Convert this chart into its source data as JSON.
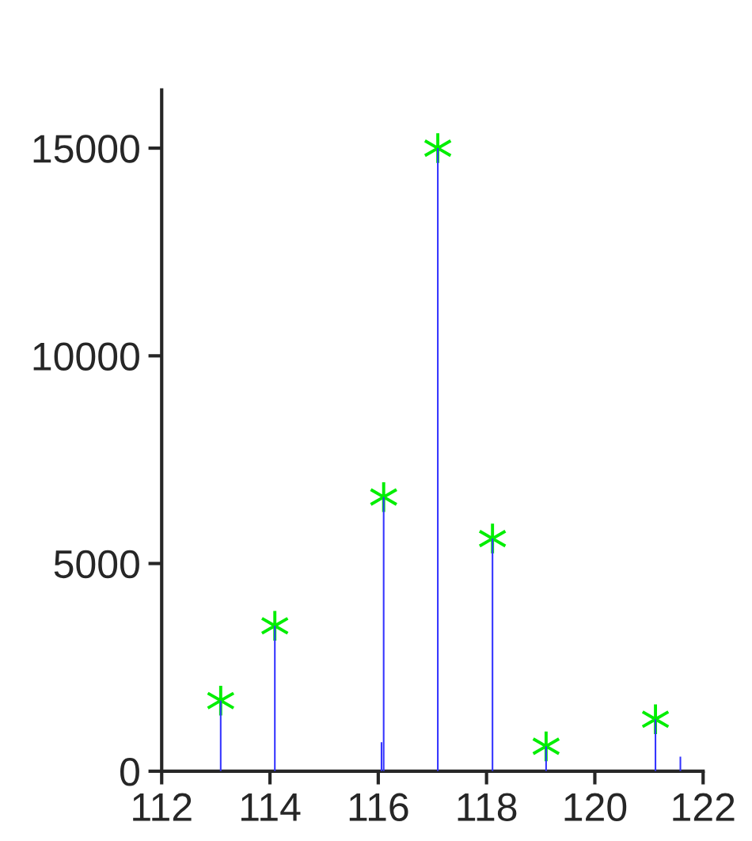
{
  "chart_data": {
    "type": "bar",
    "xlim": [
      112,
      122
    ],
    "xticks": [
      112,
      114,
      116,
      118,
      120,
      122
    ],
    "ylim": [
      0,
      16400
    ],
    "yticks": [
      0,
      5000,
      10000,
      15000
    ],
    "grid": false,
    "series": [
      {
        "color": "#3333ff",
        "x": [
          113.09,
          114.09,
          116.06,
          116.1,
          117.1,
          118.11,
          119.1,
          121.12,
          121.58
        ],
        "values": [
          1700,
          3500,
          700,
          6600,
          15000,
          5600,
          600,
          1250,
          350
        ]
      },
      {
        "type": "scatter",
        "marker": "cross",
        "color": "#00ee00",
        "x": [
          113.09,
          114.09,
          116.1,
          117.1,
          118.11,
          119.1,
          121.12
        ],
        "values": [
          1700,
          3500,
          6600,
          15000,
          5600,
          600,
          1250
        ]
      }
    ]
  }
}
